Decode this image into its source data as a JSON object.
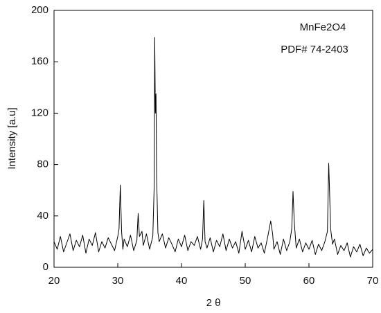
{
  "chart_data": {
    "type": "line",
    "xlabel": "2 θ",
    "ylabel": "Intensity [a.u]",
    "annotations": [
      "MnFe2O4",
      "PDF# 74-2403"
    ],
    "xlim": [
      20,
      70
    ],
    "ylim": [
      0,
      200
    ],
    "xticks": [
      20,
      30,
      40,
      50,
      60,
      70
    ],
    "yticks": [
      0,
      40,
      80,
      120,
      160,
      200
    ],
    "grid": false,
    "x": [
      20,
      20.5,
      21,
      21.5,
      22,
      22.5,
      23,
      23.5,
      24,
      24.5,
      25,
      25.5,
      26,
      26.5,
      27,
      27.5,
      28,
      28.5,
      29,
      29.5,
      30,
      30.2,
      30.4,
      30.6,
      30.8,
      31,
      31.5,
      32,
      32.5,
      33,
      33.2,
      33.4,
      33.8,
      34,
      34.5,
      35,
      35.5,
      35.7,
      35.8,
      35.9,
      36,
      36.1,
      36.3,
      36.5,
      37,
      37.5,
      38,
      38.5,
      39,
      39.5,
      40,
      40.5,
      41,
      41.5,
      42,
      42.5,
      43,
      43.3,
      43.5,
      43.7,
      44,
      44.5,
      45,
      45.5,
      46,
      46.5,
      47,
      47.5,
      48,
      48.5,
      49,
      49.5,
      50,
      50.5,
      51,
      51.5,
      52,
      52.5,
      53,
      53.5,
      54,
      54.3,
      54.5,
      55,
      55.5,
      56,
      56.5,
      57,
      57.3,
      57.5,
      57.7,
      58,
      58.5,
      59,
      59.5,
      60,
      60.5,
      61,
      61.5,
      62,
      62.5,
      62.9,
      63.1,
      63.2,
      63.4,
      63.7,
      64,
      64.5,
      65,
      65.5,
      66,
      66.5,
      67,
      67.5,
      68,
      68.5,
      69,
      69.5,
      70
    ],
    "series": [
      {
        "color": "#000000",
        "values": [
          20,
          14,
          24,
          12,
          19,
          26,
          13,
          21,
          16,
          25,
          11,
          22,
          17,
          27,
          12,
          20,
          15,
          23,
          18,
          13,
          24,
          30,
          64,
          28,
          14,
          22,
          16,
          25,
          13,
          21,
          42,
          24,
          28,
          17,
          26,
          14,
          24,
          60,
          179,
          120,
          135,
          70,
          27,
          20,
          26,
          15,
          23,
          18,
          12,
          22,
          16,
          25,
          13,
          20,
          17,
          24,
          14,
          22,
          52,
          20,
          15,
          23,
          12,
          21,
          16,
          26,
          13,
          22,
          15,
          20,
          11,
          28,
          14,
          21,
          12,
          24,
          15,
          19,
          11,
          23,
          36,
          26,
          14,
          20,
          10,
          22,
          13,
          20,
          30,
          59,
          35,
          15,
          22,
          12,
          19,
          14,
          21,
          10,
          18,
          13,
          20,
          28,
          81,
          65,
          30,
          18,
          22,
          10,
          17,
          13,
          19,
          8,
          16,
          12,
          18,
          9,
          15,
          11,
          14
        ]
      }
    ]
  }
}
